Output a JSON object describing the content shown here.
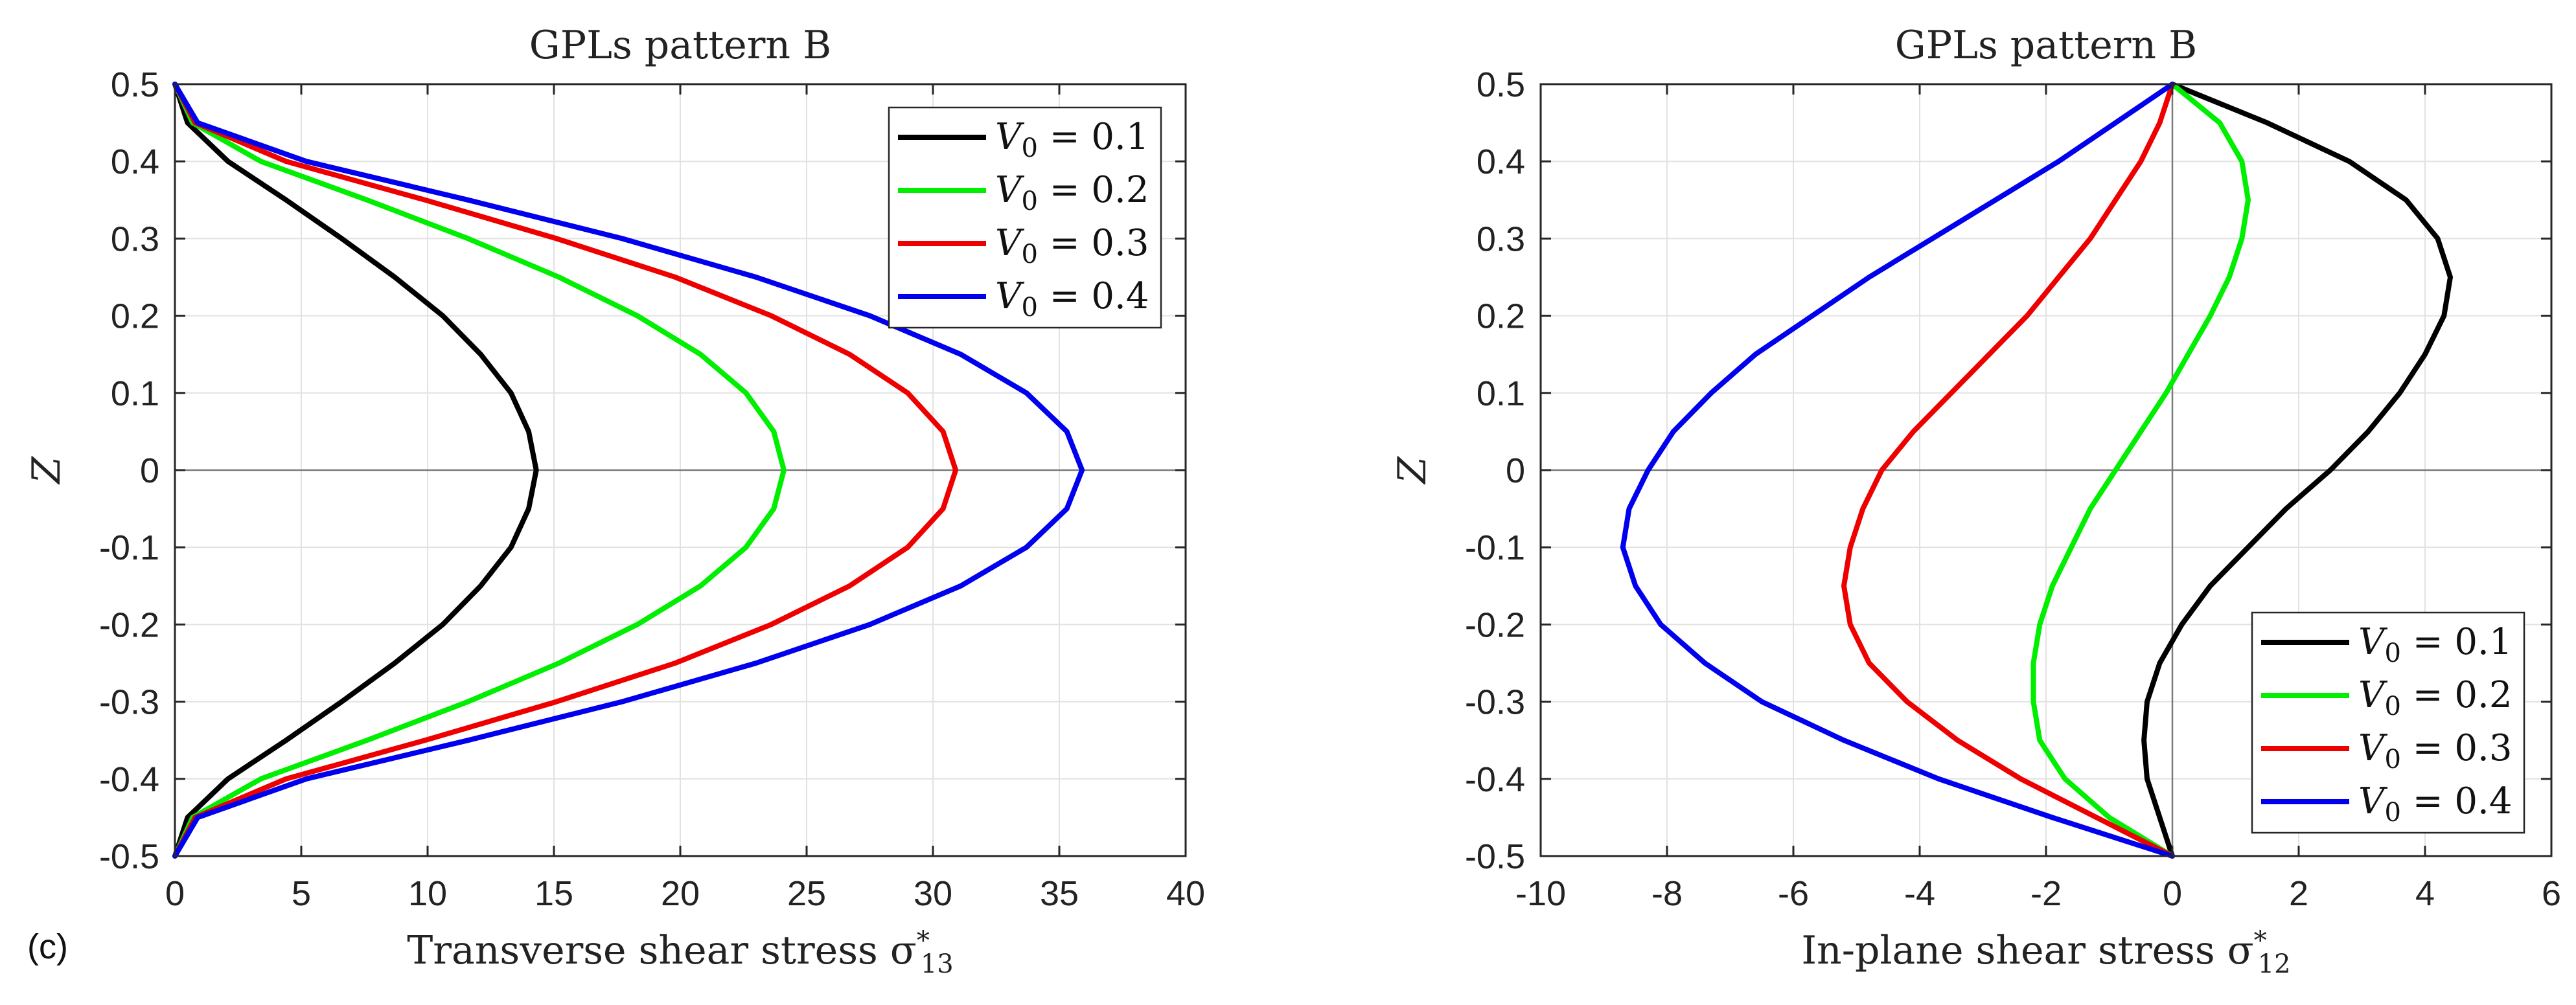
{
  "panel_tag": "(c)",
  "chart_data": [
    {
      "type": "line",
      "title": "GPLs pattern B",
      "xlabel": "Transverse shear stress σ*13",
      "ylabel": "Z",
      "xlim": [
        0,
        40
      ],
      "ylim": [
        -0.5,
        0.5
      ],
      "xticks": [
        0,
        5,
        10,
        15,
        20,
        25,
        30,
        35,
        40
      ],
      "yticks": [
        0.5,
        0.4,
        0.3,
        0.2,
        0.1,
        0,
        -0.1,
        -0.2,
        -0.3,
        -0.4,
        -0.5
      ],
      "xtick_labels": [
        "0",
        "5",
        "10",
        "15",
        "20",
        "25",
        "30",
        "35",
        "40"
      ],
      "ytick_labels": [
        "0.5",
        "0.4",
        "0.3",
        "0.2",
        "0.1",
        "0",
        "-0.1",
        "-0.2",
        "-0.3",
        "-0.4",
        "-0.5"
      ],
      "grid": true,
      "legend_position": "top-right",
      "series": [
        {
          "name": "V0 = 0.1",
          "color": "#000000",
          "points": [
            [
              0,
              0.5
            ],
            [
              0.5,
              0.45
            ],
            [
              2.1,
              0.4
            ],
            [
              4.4,
              0.35
            ],
            [
              6.6,
              0.3
            ],
            [
              8.7,
              0.25
            ],
            [
              10.6,
              0.2
            ],
            [
              12.1,
              0.15
            ],
            [
              13.3,
              0.1
            ],
            [
              14.0,
              0.05
            ],
            [
              14.3,
              0
            ],
            [
              14.0,
              -0.05
            ],
            [
              13.3,
              -0.1
            ],
            [
              12.1,
              -0.15
            ],
            [
              10.6,
              -0.2
            ],
            [
              8.7,
              -0.25
            ],
            [
              6.6,
              -0.3
            ],
            [
              4.4,
              -0.35
            ],
            [
              2.1,
              -0.4
            ],
            [
              0.5,
              -0.45
            ],
            [
              0,
              -0.5
            ]
          ]
        },
        {
          "name": "V0 = 0.2",
          "color": "#00ee00",
          "points": [
            [
              0,
              0.5
            ],
            [
              0.7,
              0.45
            ],
            [
              3.4,
              0.4
            ],
            [
              7.6,
              0.35
            ],
            [
              11.6,
              0.3
            ],
            [
              15.2,
              0.25
            ],
            [
              18.3,
              0.2
            ],
            [
              20.8,
              0.15
            ],
            [
              22.6,
              0.1
            ],
            [
              23.7,
              0.05
            ],
            [
              24.1,
              0
            ],
            [
              23.7,
              -0.05
            ],
            [
              22.6,
              -0.1
            ],
            [
              20.8,
              -0.15
            ],
            [
              18.3,
              -0.2
            ],
            [
              15.2,
              -0.25
            ],
            [
              11.6,
              -0.3
            ],
            [
              7.6,
              -0.35
            ],
            [
              3.4,
              -0.4
            ],
            [
              0.7,
              -0.45
            ],
            [
              0,
              -0.5
            ]
          ]
        },
        {
          "name": "V0 = 0.3",
          "color": "#ee0000",
          "points": [
            [
              0,
              0.5
            ],
            [
              0.8,
              0.45
            ],
            [
              4.4,
              0.4
            ],
            [
              9.9,
              0.35
            ],
            [
              15.1,
              0.3
            ],
            [
              19.8,
              0.25
            ],
            [
              23.6,
              0.2
            ],
            [
              26.7,
              0.15
            ],
            [
              29.0,
              0.1
            ],
            [
              30.4,
              0.05
            ],
            [
              30.9,
              0
            ],
            [
              30.4,
              -0.05
            ],
            [
              29.0,
              -0.1
            ],
            [
              26.7,
              -0.15
            ],
            [
              23.6,
              -0.2
            ],
            [
              19.8,
              -0.25
            ],
            [
              15.1,
              -0.3
            ],
            [
              9.9,
              -0.35
            ],
            [
              4.4,
              -0.4
            ],
            [
              0.8,
              -0.45
            ],
            [
              0,
              -0.5
            ]
          ]
        },
        {
          "name": "V0 = 0.4",
          "color": "#0000ee",
          "points": [
            [
              0,
              0.5
            ],
            [
              0.9,
              0.45
            ],
            [
              5.2,
              0.4
            ],
            [
              11.6,
              0.35
            ],
            [
              17.7,
              0.3
            ],
            [
              23.0,
              0.25
            ],
            [
              27.5,
              0.2
            ],
            [
              31.1,
              0.15
            ],
            [
              33.7,
              0.1
            ],
            [
              35.3,
              0.05
            ],
            [
              35.9,
              0
            ],
            [
              35.3,
              -0.05
            ],
            [
              33.7,
              -0.1
            ],
            [
              31.1,
              -0.15
            ],
            [
              27.5,
              -0.2
            ],
            [
              23.0,
              -0.25
            ],
            [
              17.7,
              -0.3
            ],
            [
              11.6,
              -0.35
            ],
            [
              5.2,
              -0.4
            ],
            [
              0.9,
              -0.45
            ],
            [
              0,
              -0.5
            ]
          ]
        }
      ]
    },
    {
      "type": "line",
      "title": "GPLs pattern B",
      "xlabel": "In-plane shear stress σ*12",
      "ylabel": "Z",
      "xlim": [
        -10,
        6
      ],
      "ylim": [
        -0.5,
        0.5
      ],
      "xticks": [
        -10,
        -8,
        -6,
        -4,
        -2,
        0,
        2,
        4,
        6
      ],
      "yticks": [
        0.5,
        0.4,
        0.3,
        0.2,
        0.1,
        0,
        -0.1,
        -0.2,
        -0.3,
        -0.4,
        -0.5
      ],
      "xtick_labels": [
        "-10",
        "-8",
        "-6",
        "-4",
        "-2",
        "0",
        "2",
        "4",
        "6"
      ],
      "ytick_labels": [
        "0.5",
        "0.4",
        "0.3",
        "0.2",
        "0.1",
        "0",
        "-0.1",
        "-0.2",
        "-0.3",
        "-0.4",
        "-0.5"
      ],
      "grid": true,
      "legend_position": "bottom-right",
      "series": [
        {
          "name": "V0 = 0.1",
          "color": "#000000",
          "points": [
            [
              0,
              0.5
            ],
            [
              1.5,
              0.45
            ],
            [
              2.8,
              0.4
            ],
            [
              3.7,
              0.35
            ],
            [
              4.2,
              0.3
            ],
            [
              4.4,
              0.25
            ],
            [
              4.3,
              0.2
            ],
            [
              4.0,
              0.15
            ],
            [
              3.6,
              0.1
            ],
            [
              3.1,
              0.05
            ],
            [
              2.5,
              0
            ],
            [
              1.8,
              -0.05
            ],
            [
              1.2,
              -0.1
            ],
            [
              0.6,
              -0.15
            ],
            [
              0.15,
              -0.2
            ],
            [
              -0.2,
              -0.25
            ],
            [
              -0.4,
              -0.3
            ],
            [
              -0.45,
              -0.35
            ],
            [
              -0.4,
              -0.4
            ],
            [
              -0.2,
              -0.45
            ],
            [
              0,
              -0.5
            ]
          ]
        },
        {
          "name": "V0 = 0.2",
          "color": "#00ee00",
          "points": [
            [
              0,
              0.5
            ],
            [
              0.75,
              0.45
            ],
            [
              1.1,
              0.4
            ],
            [
              1.2,
              0.35
            ],
            [
              1.1,
              0.3
            ],
            [
              0.9,
              0.25
            ],
            [
              0.6,
              0.2
            ],
            [
              0.25,
              0.15
            ],
            [
              -0.1,
              0.1
            ],
            [
              -0.5,
              0.05
            ],
            [
              -0.9,
              0
            ],
            [
              -1.3,
              -0.05
            ],
            [
              -1.6,
              -0.1
            ],
            [
              -1.9,
              -0.15
            ],
            [
              -2.1,
              -0.2
            ],
            [
              -2.2,
              -0.25
            ],
            [
              -2.2,
              -0.3
            ],
            [
              -2.1,
              -0.35
            ],
            [
              -1.7,
              -0.4
            ],
            [
              -1.0,
              -0.45
            ],
            [
              0,
              -0.5
            ]
          ]
        },
        {
          "name": "V0 = 0.3",
          "color": "#ee0000",
          "points": [
            [
              0,
              0.5
            ],
            [
              -0.2,
              0.45
            ],
            [
              -0.5,
              0.4
            ],
            [
              -0.9,
              0.35
            ],
            [
              -1.3,
              0.3
            ],
            [
              -1.8,
              0.25
            ],
            [
              -2.3,
              0.2
            ],
            [
              -2.9,
              0.15
            ],
            [
              -3.5,
              0.1
            ],
            [
              -4.1,
              0.05
            ],
            [
              -4.6,
              0
            ],
            [
              -4.9,
              -0.05
            ],
            [
              -5.1,
              -0.1
            ],
            [
              -5.2,
              -0.15
            ],
            [
              -5.1,
              -0.2
            ],
            [
              -4.8,
              -0.25
            ],
            [
              -4.2,
              -0.3
            ],
            [
              -3.4,
              -0.35
            ],
            [
              -2.4,
              -0.4
            ],
            [
              -1.2,
              -0.45
            ],
            [
              0,
              -0.5
            ]
          ]
        },
        {
          "name": "V0 = 0.4",
          "color": "#0000ee",
          "points": [
            [
              0,
              0.5
            ],
            [
              -0.9,
              0.45
            ],
            [
              -1.8,
              0.4
            ],
            [
              -2.8,
              0.35
            ],
            [
              -3.8,
              0.3
            ],
            [
              -4.8,
              0.25
            ],
            [
              -5.7,
              0.2
            ],
            [
              -6.6,
              0.15
            ],
            [
              -7.3,
              0.1
            ],
            [
              -7.9,
              0.05
            ],
            [
              -8.3,
              0
            ],
            [
              -8.6,
              -0.05
            ],
            [
              -8.7,
              -0.1
            ],
            [
              -8.5,
              -0.15
            ],
            [
              -8.1,
              -0.2
            ],
            [
              -7.4,
              -0.25
            ],
            [
              -6.5,
              -0.3
            ],
            [
              -5.2,
              -0.35
            ],
            [
              -3.7,
              -0.4
            ],
            [
              -1.9,
              -0.45
            ],
            [
              0,
              -0.5
            ]
          ]
        }
      ]
    }
  ]
}
